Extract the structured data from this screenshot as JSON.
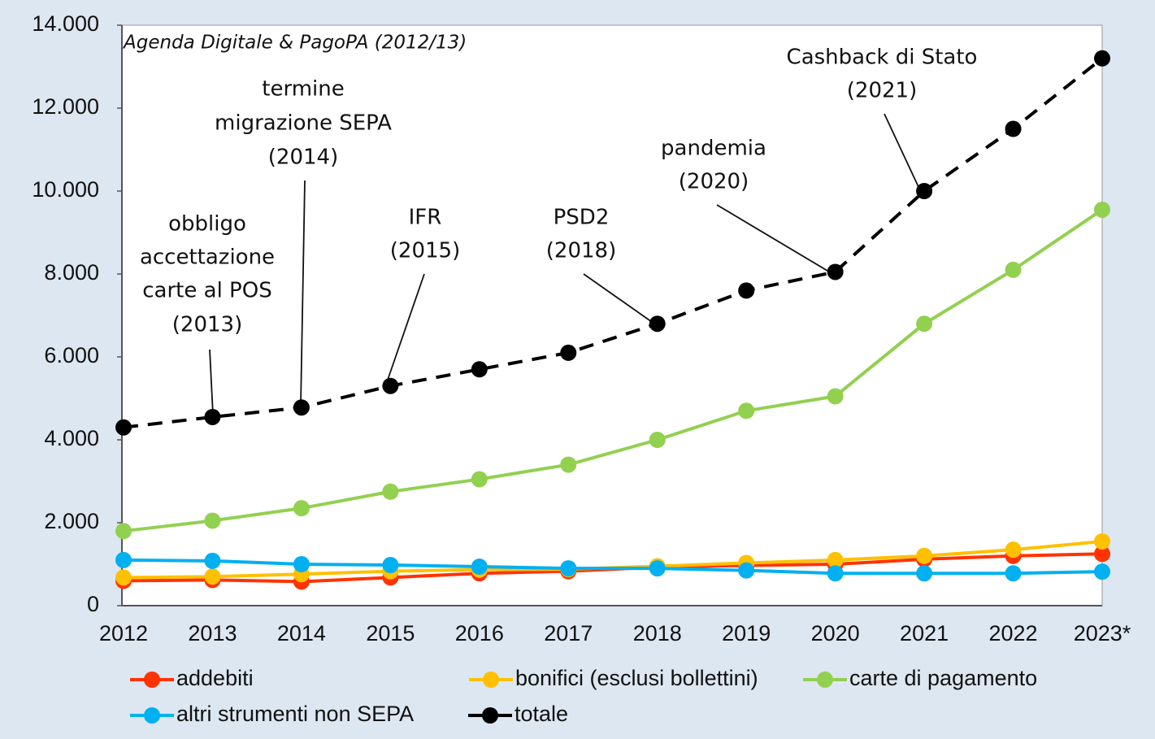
{
  "chart_data": {
    "type": "line",
    "categories": [
      "2012",
      "2013",
      "2014",
      "2015",
      "2016",
      "2017",
      "2018",
      "2019",
      "2020",
      "2021",
      "2022",
      "2023*"
    ],
    "series": [
      {
        "name": "addebiti",
        "color": "#ff3300",
        "values": [
          600,
          620,
          580,
          680,
          780,
          830,
          930,
          970,
          1000,
          1120,
          1200,
          1250
        ]
      },
      {
        "name": "bonifici (esclusi bollettini)",
        "color": "#ffc000",
        "values": [
          680,
          700,
          760,
          830,
          870,
          880,
          950,
          1030,
          1100,
          1200,
          1350,
          1550
        ]
      },
      {
        "name": "carte di pagamento",
        "color": "#92d050",
        "values": [
          1800,
          2050,
          2350,
          2750,
          3050,
          3400,
          4000,
          4700,
          5050,
          6800,
          8100,
          9550
        ]
      },
      {
        "name": "altri strumenti non SEPA",
        "color": "#00b0f0",
        "values": [
          1100,
          1080,
          1000,
          980,
          940,
          900,
          900,
          850,
          780,
          780,
          780,
          820
        ]
      },
      {
        "name": "totale",
        "color": "#000000",
        "dashed": true,
        "values": [
          4300,
          4550,
          4780,
          5300,
          5700,
          6100,
          6800,
          7600,
          8050,
          10000,
          11500,
          13200
        ]
      }
    ],
    "ylim": [
      0,
      14000
    ],
    "yticks": [
      0,
      {
        "value": 2000,
        "label": "2.000"
      },
      {
        "value": 4000,
        "label": "4.000"
      },
      {
        "value": 6000,
        "label": "6.000"
      },
      {
        "value": 8000,
        "label": "8.000"
      },
      {
        "value": 10000,
        "label": "10.000"
      },
      {
        "value": 12000,
        "label": "12.000"
      },
      {
        "value": 14000,
        "label": "14.000"
      }
    ],
    "annotations": [
      {
        "lines": [
          "Agenda Digitale & PagoPA (2012/13)"
        ]
      },
      {
        "lines": [
          "obbligo",
          "accettazione",
          "carte al POS",
          "(2013)"
        ]
      },
      {
        "lines": [
          "termine",
          "migrazione SEPA",
          "(2014)"
        ]
      },
      {
        "lines": [
          "IFR",
          "(2015)"
        ]
      },
      {
        "lines": [
          "PSD2",
          "(2018)"
        ]
      },
      {
        "lines": [
          "pandemia",
          "(2020)"
        ]
      },
      {
        "lines": [
          "Cashback di Stato",
          "(2021)"
        ]
      }
    ],
    "legend": "bottom"
  }
}
